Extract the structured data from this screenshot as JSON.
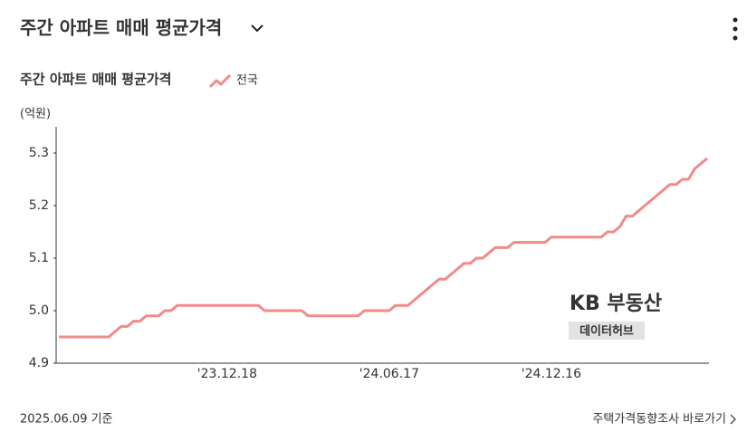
{
  "header": {
    "title": "주간 아파트 매매 평균가격"
  },
  "chart_data": {
    "type": "line",
    "title": "주간 아파트 매매 평균가격",
    "y_unit": "(억원)",
    "categories": [
      null,
      null,
      null,
      null,
      null,
      null,
      null,
      null,
      null,
      null,
      null,
      null,
      null,
      null,
      null,
      null,
      null,
      null,
      null,
      null,
      null,
      null,
      null,
      null,
      null,
      null,
      null,
      "'23.12.18",
      null,
      null,
      null,
      null,
      null,
      null,
      null,
      null,
      null,
      null,
      null,
      null,
      null,
      null,
      null,
      null,
      null,
      null,
      null,
      null,
      null,
      null,
      null,
      null,
      null,
      "'24.06.17",
      null,
      null,
      null,
      null,
      null,
      null,
      null,
      null,
      null,
      null,
      null,
      null,
      null,
      null,
      null,
      null,
      null,
      null,
      null,
      null,
      null,
      null,
      null,
      null,
      null,
      "'24.12.16",
      null,
      null,
      null,
      null,
      null,
      null,
      null,
      null,
      null,
      null,
      null,
      null,
      null,
      null,
      null,
      null,
      null,
      null,
      null,
      null,
      null,
      null,
      null,
      null,
      null
    ],
    "series": [
      {
        "name": "전국",
        "color": "#f28b88",
        "values": [
          4.95,
          4.95,
          4.95,
          4.95,
          4.95,
          4.95,
          4.95,
          4.95,
          4.95,
          4.96,
          4.97,
          4.97,
          4.98,
          4.98,
          4.99,
          4.99,
          4.99,
          5.0,
          5.0,
          5.01,
          5.01,
          5.01,
          5.01,
          5.01,
          5.01,
          5.01,
          5.01,
          5.01,
          5.01,
          5.01,
          5.01,
          5.01,
          5.01,
          5.0,
          5.0,
          5.0,
          5.0,
          5.0,
          5.0,
          5.0,
          4.99,
          4.99,
          4.99,
          4.99,
          4.99,
          4.99,
          4.99,
          4.99,
          4.99,
          5.0,
          5.0,
          5.0,
          5.0,
          5.0,
          5.01,
          5.01,
          5.01,
          5.02,
          5.03,
          5.04,
          5.05,
          5.06,
          5.06,
          5.07,
          5.08,
          5.09,
          5.09,
          5.1,
          5.1,
          5.11,
          5.12,
          5.12,
          5.12,
          5.13,
          5.13,
          5.13,
          5.13,
          5.13,
          5.13,
          5.14,
          5.14,
          5.14,
          5.14,
          5.14,
          5.14,
          5.14,
          5.14,
          5.14,
          5.15,
          5.15,
          5.16,
          5.18,
          5.18,
          5.19,
          5.2,
          5.21,
          5.22,
          5.23,
          5.24,
          5.24,
          5.25,
          5.25,
          5.27,
          5.28,
          5.29
        ]
      }
    ],
    "ylim": [
      4.9,
      5.35
    ],
    "yticks": [
      4.9,
      {
        "value": 5,
        "label": "5.0"
      },
      5.1,
      5.2,
      5.3
    ]
  },
  "watermark": {
    "brand": "KB 부동산",
    "sub": "데이터허브"
  },
  "footer": {
    "date": "2025.06.09 기준",
    "link": "주택가격동향조사 바로가기"
  }
}
